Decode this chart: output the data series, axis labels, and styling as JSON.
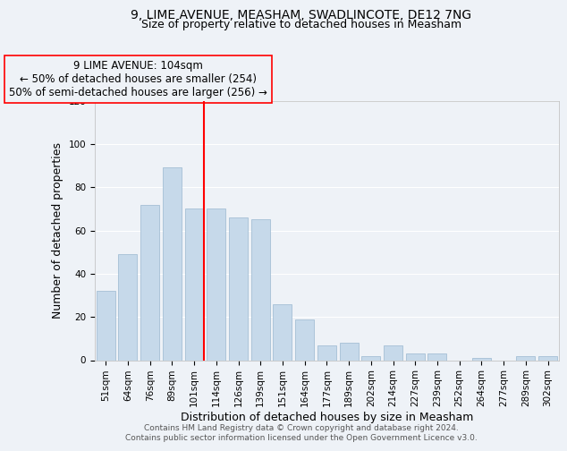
{
  "title": "9, LIME AVENUE, MEASHAM, SWADLINCOTE, DE12 7NG",
  "subtitle": "Size of property relative to detached houses in Measham",
  "xlabel": "Distribution of detached houses by size in Measham",
  "ylabel": "Number of detached properties",
  "bar_labels": [
    "51sqm",
    "64sqm",
    "76sqm",
    "89sqm",
    "101sqm",
    "114sqm",
    "126sqm",
    "139sqm",
    "151sqm",
    "164sqm",
    "177sqm",
    "189sqm",
    "202sqm",
    "214sqm",
    "227sqm",
    "239sqm",
    "252sqm",
    "264sqm",
    "277sqm",
    "289sqm",
    "302sqm"
  ],
  "bar_values": [
    32,
    49,
    72,
    89,
    70,
    70,
    66,
    65,
    26,
    19,
    7,
    8,
    2,
    7,
    3,
    3,
    0,
    1,
    0,
    2,
    2
  ],
  "bar_color": "#c6d9ea",
  "bar_edge_color": "#9ab8d0",
  "vline_color": "red",
  "vline_pos": 4.43,
  "annotation_line1": "9 LIME AVENUE: 104sqm",
  "annotation_line2": "← 50% of detached houses are smaller (254)",
  "annotation_line3": "50% of semi-detached houses are larger (256) →",
  "ylim": [
    0,
    120
  ],
  "yticks": [
    0,
    20,
    40,
    60,
    80,
    100,
    120
  ],
  "footer_line1": "Contains HM Land Registry data © Crown copyright and database right 2024.",
  "footer_line2": "Contains public sector information licensed under the Open Government Licence v3.0.",
  "background_color": "#eef2f7",
  "grid_color": "#ffffff",
  "title_fontsize": 10,
  "subtitle_fontsize": 9,
  "axis_label_fontsize": 9,
  "tick_fontsize": 7.5,
  "annotation_fontsize": 8.5,
  "footer_fontsize": 6.5
}
